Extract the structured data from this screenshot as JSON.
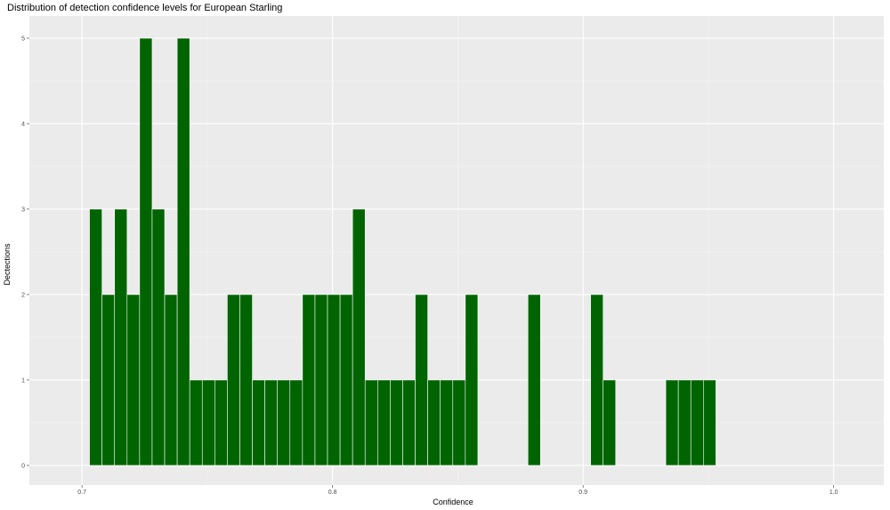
{
  "chart_data": {
    "type": "bar",
    "title": "Distribution of detection confidence levels for European Starling",
    "xlabel": "Confidence",
    "ylabel": "Dectections",
    "bin_width": 0.005,
    "first_bin_start": 0.703,
    "values": [
      3,
      2,
      3,
      2,
      5,
      3,
      2,
      5,
      1,
      1,
      1,
      2,
      2,
      1,
      1,
      1,
      1,
      2,
      2,
      2,
      2,
      3,
      1,
      1,
      1,
      1,
      2,
      1,
      1,
      1,
      2,
      0,
      0,
      0,
      0,
      2,
      0,
      0,
      0,
      0,
      2,
      1,
      0,
      0,
      0,
      0,
      1,
      1,
      1,
      1
    ],
    "xlim": [
      0.679,
      1.02
    ],
    "ylim": [
      -0.23,
      5.26
    ],
    "xticks": [
      "0.7",
      "0.8",
      "0.9",
      "1.0"
    ],
    "xtick_values": [
      0.7,
      0.8,
      0.9,
      1.0
    ],
    "yticks": [
      "0",
      "1",
      "2",
      "3",
      "4",
      "5"
    ],
    "ytick_values": [
      0,
      1,
      2,
      3,
      4,
      5
    ],
    "grid": true,
    "colors": {
      "bar_fill": "#006400",
      "bar_outline": "#ffffff",
      "panel": "#ebebeb",
      "grid": "#ffffff"
    }
  }
}
